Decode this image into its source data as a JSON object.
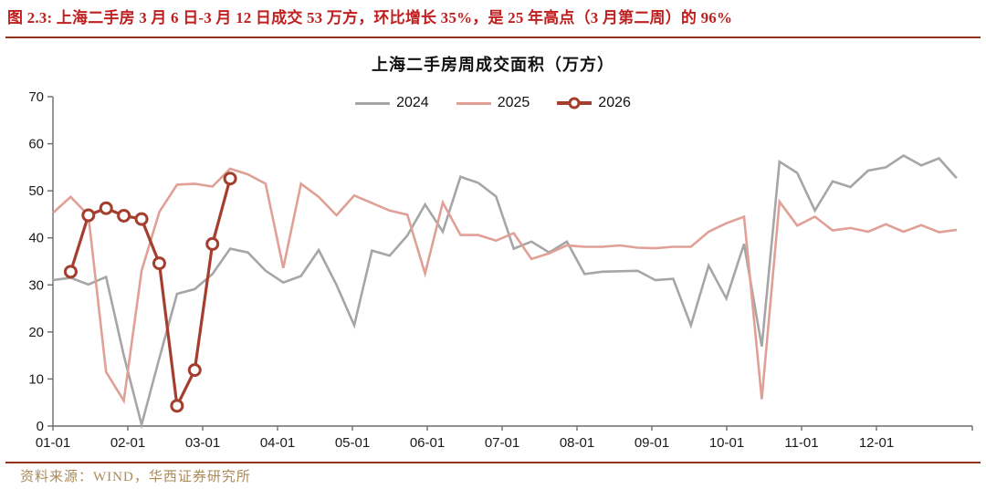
{
  "header": {
    "title": "图 2.3: 上海二手房 3 月 6 日-3 月 12 日成交 53 万方，环比增长 35%，是 25 年高点（3 月第二周）的 96%"
  },
  "footer": {
    "source": "资料来源：WIND，华西证券研究所"
  },
  "colors": {
    "title_red": "#c01f1f",
    "rule_red": "#95301f",
    "source_gold": "#ad8a55",
    "axis": "#6b6b6b",
    "label": "#1a1a1a",
    "series_2024": "#a6a6a6",
    "series_2025": "#e0a096",
    "series_2026": "#a43e2e"
  },
  "chart_data": {
    "type": "line",
    "title": "上海二手房周成交面积（万方）",
    "xlabel": "",
    "ylabel": "",
    "ylim": [
      0,
      70
    ],
    "grid": false,
    "legend_position": "top-center",
    "x_unit": "week",
    "x_tick_labels": [
      "01-01",
      "02-01",
      "03-01",
      "04-01",
      "05-01",
      "06-01",
      "07-01",
      "08-01",
      "09-01",
      "10-01",
      "11-01",
      "12-01"
    ],
    "y_ticks": [
      0,
      10,
      20,
      30,
      40,
      50,
      60,
      70
    ],
    "series": [
      {
        "name": "2024",
        "color_key": "series_2024",
        "marker": "none",
        "week_start": 0,
        "values": [
          31,
          31.5,
          30.1,
          31.7,
          15,
          0.3,
          14.4,
          28.1,
          29.1,
          32.3,
          37.7,
          36.9,
          33,
          30.5,
          31.9,
          37.4,
          30,
          21.4,
          37.3,
          36.2,
          40.5,
          47.1,
          41.3,
          53,
          51.7,
          48.8,
          37.7,
          39.2,
          36.9,
          39.2,
          32.3,
          32.8,
          32.9,
          33,
          31,
          31.3,
          21.4,
          34.1,
          27.1,
          38.7,
          16.9,
          56.2,
          53.8,
          45.8,
          52,
          50.8,
          54.3,
          55,
          57.5,
          55.4,
          56.9,
          52.7
        ]
      },
      {
        "name": "2025",
        "color_key": "series_2025",
        "marker": "none",
        "week_start": 0,
        "values": [
          45.3,
          48.7,
          44.8,
          11.5,
          5.4,
          33,
          45.5,
          51.3,
          51.5,
          50.9,
          54.7,
          53.5,
          51.5,
          33.6,
          51.5,
          48.7,
          44.8,
          49,
          47.4,
          45.8,
          44.9,
          32.4,
          47.5,
          40.6,
          40.6,
          39.4,
          41,
          35.5,
          36.7,
          38.4,
          38.1,
          38.1,
          38.4,
          37.9,
          37.8,
          38.1,
          38.1,
          41.3,
          43.1,
          44.5,
          5.7,
          47.7,
          42.6,
          44.5,
          41.6,
          42.1,
          41.3,
          42.9,
          41.3,
          42.7,
          41.2,
          41.7
        ]
      },
      {
        "name": "2026",
        "color_key": "series_2026",
        "marker": "circle",
        "week_start": 1,
        "values": [
          32.8,
          44.8,
          46.3,
          44.7,
          44,
          34.6,
          4.3,
          11.9,
          38.7,
          52.6
        ]
      }
    ]
  }
}
